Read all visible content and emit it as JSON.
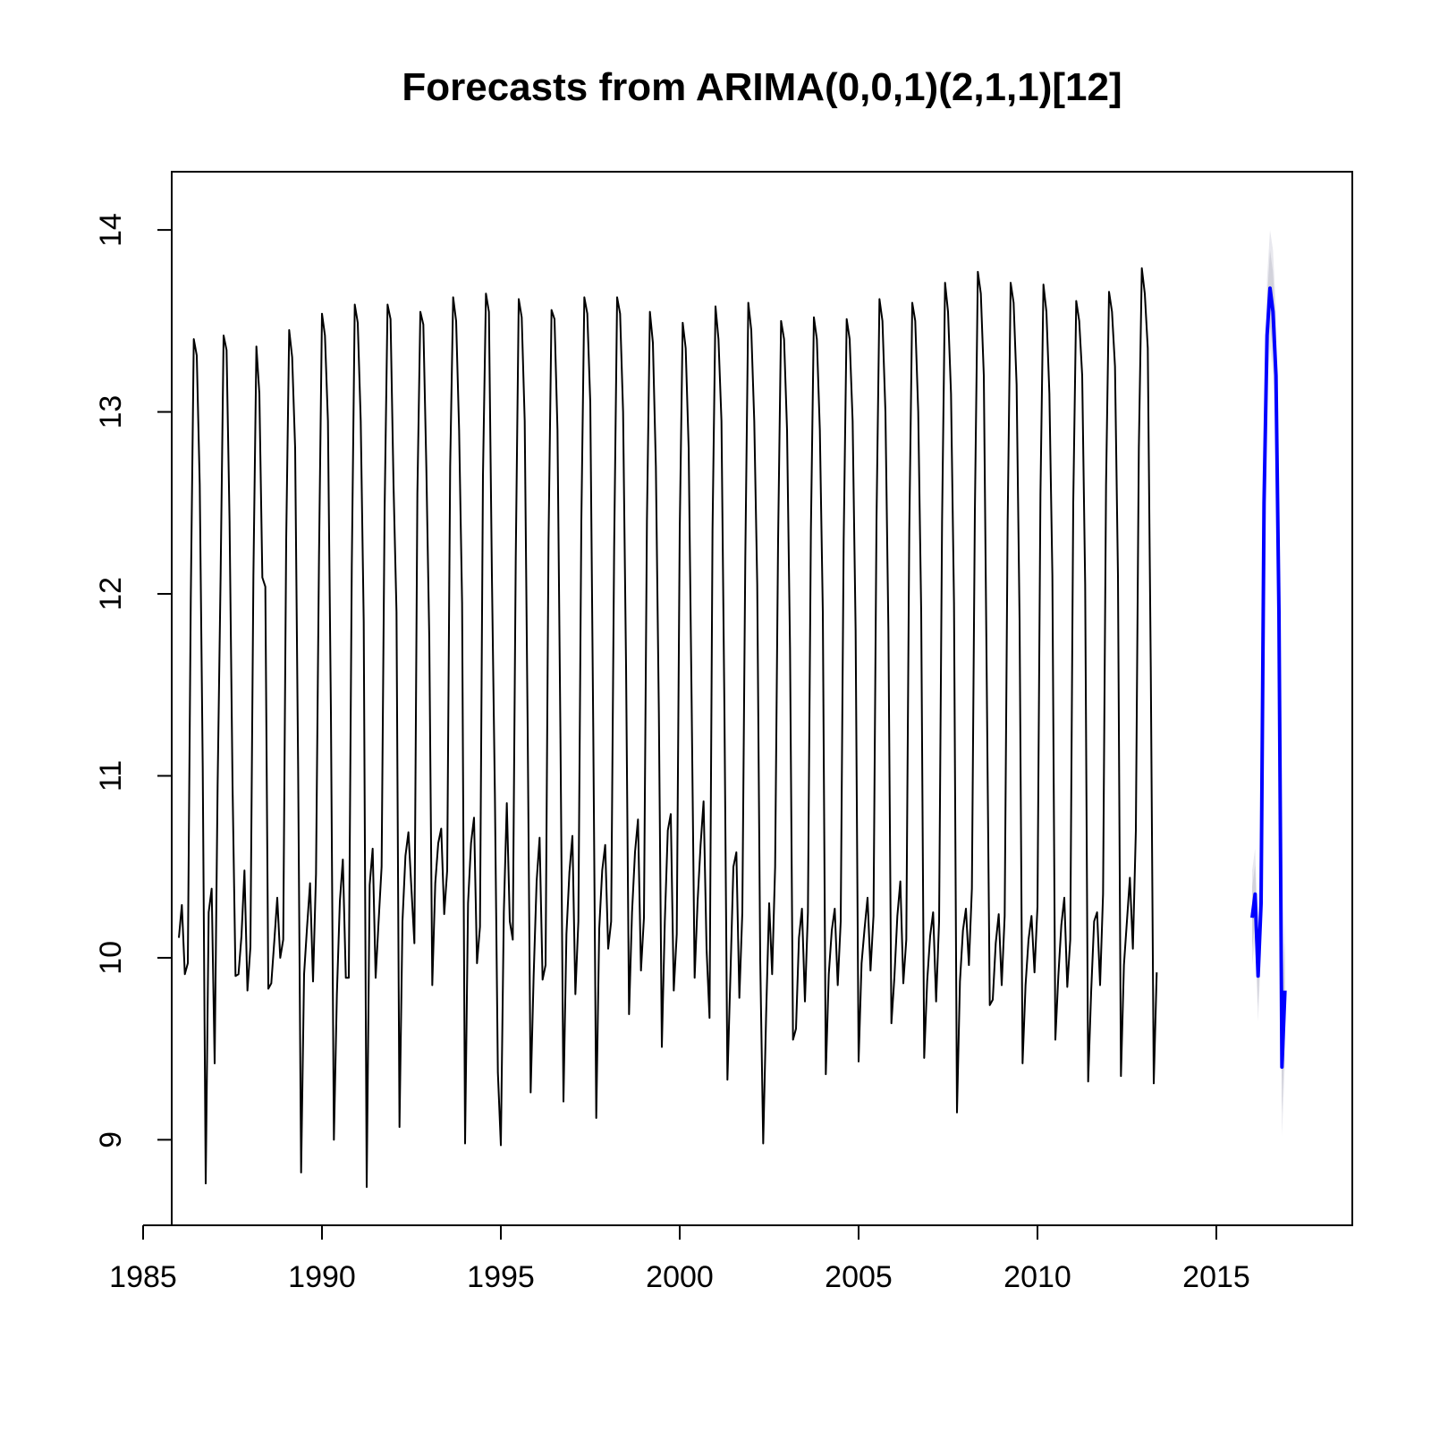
{
  "chart_data": {
    "type": "line",
    "title": "Forecasts from ARIMA(0,0,1)(2,1,1)[12]",
    "xlabel": "",
    "ylabel": "",
    "xlim": [
      1985.8,
      2018.8
    ],
    "ylim": [
      8.53,
      14.32
    ],
    "x_ticks": [
      1985,
      1990,
      1995,
      2000,
      2005,
      2010,
      2015
    ],
    "y_ticks": [
      9,
      10,
      11,
      12,
      13,
      14
    ],
    "grid": false,
    "legend": "none",
    "frequency": 12,
    "history": {
      "start": 1986.0,
      "values": [
        10.11,
        10.29,
        9.91,
        9.97,
        11.98,
        13.4,
        13.31,
        12.6,
        11.05,
        8.76,
        10.25,
        10.38,
        9.42,
        10.95,
        12.1,
        13.42,
        13.34,
        12.4,
        10.95,
        9.9,
        9.91,
        10.12,
        10.48,
        9.82,
        10.06,
        12.1,
        13.36,
        13.1,
        12.09,
        12.04,
        9.83,
        9.86,
        10.09,
        10.33,
        10.0,
        10.1,
        12.3,
        13.45,
        13.3,
        12.8,
        11.05,
        8.82,
        9.91,
        10.17,
        10.41,
        9.87,
        10.46,
        12.2,
        13.54,
        13.42,
        12.95,
        11.35,
        9.0,
        9.8,
        10.31,
        10.54,
        9.89,
        9.89,
        12.15,
        13.59,
        13.49,
        12.95,
        11.85,
        8.74,
        10.4,
        10.6,
        9.89,
        10.2,
        10.5,
        12.45,
        13.59,
        13.51,
        12.6,
        11.9,
        9.07,
        10.2,
        10.56,
        10.69,
        10.38,
        10.08,
        12.55,
        13.55,
        13.48,
        12.7,
        11.75,
        9.85,
        10.41,
        10.63,
        10.71,
        10.24,
        10.48,
        12.7,
        13.63,
        13.5,
        12.9,
        11.95,
        8.98,
        10.3,
        10.63,
        10.77,
        9.97,
        10.17,
        12.65,
        13.65,
        13.55,
        12.1,
        10.9,
        9.37,
        8.97,
        10.25,
        10.85,
        10.2,
        10.1,
        12.2,
        13.62,
        13.52,
        12.95,
        11.25,
        9.26,
        9.9,
        10.42,
        10.66,
        9.88,
        9.96,
        12.3,
        13.56,
        13.51,
        12.9,
        11.2,
        9.21,
        10.13,
        10.47,
        10.67,
        9.8,
        10.2,
        12.4,
        13.63,
        13.54,
        13.05,
        11.25,
        9.12,
        10.16,
        10.48,
        10.62,
        10.05,
        10.2,
        12.25,
        13.63,
        13.54,
        13.0,
        11.6,
        9.69,
        10.25,
        10.58,
        10.76,
        9.93,
        10.22,
        12.4,
        13.55,
        13.38,
        12.7,
        11.35,
        9.51,
        10.2,
        10.7,
        10.79,
        9.82,
        10.13,
        12.35,
        13.49,
        13.35,
        12.8,
        11.4,
        9.89,
        10.31,
        10.62,
        10.86,
        10.05,
        9.67,
        12.35,
        13.58,
        13.4,
        12.95,
        11.35,
        9.33,
        9.9,
        10.5,
        10.58,
        9.78,
        10.25,
        12.2,
        13.6,
        13.45,
        12.95,
        12.05,
        9.99,
        8.98,
        9.7,
        10.3,
        9.91,
        10.5,
        12.3,
        13.5,
        13.4,
        12.9,
        11.7,
        9.55,
        9.61,
        10.11,
        10.27,
        9.76,
        10.25,
        12.35,
        13.52,
        13.4,
        12.9,
        11.9,
        9.36,
        9.91,
        10.15,
        10.27,
        9.85,
        10.2,
        12.3,
        13.51,
        13.4,
        12.95,
        11.8,
        9.43,
        9.97,
        10.16,
        10.33,
        9.93,
        10.23,
        12.4,
        13.62,
        13.5,
        13.0,
        11.8,
        9.64,
        9.89,
        10.23,
        10.42,
        9.86,
        10.1,
        12.35,
        13.6,
        13.5,
        13.0,
        11.9,
        9.45,
        9.87,
        10.12,
        10.25,
        9.76,
        10.2,
        12.4,
        13.71,
        13.55,
        13.1,
        11.95,
        9.15,
        9.87,
        10.15,
        10.27,
        9.96,
        10.38,
        12.45,
        13.77,
        13.65,
        13.2,
        11.5,
        9.74,
        9.77,
        10.08,
        10.24,
        9.85,
        10.23,
        12.4,
        13.71,
        13.6,
        13.15,
        11.85,
        9.42,
        9.85,
        10.1,
        10.23,
        9.92,
        10.28,
        12.55,
        13.7,
        13.55,
        13.1,
        12.1,
        9.55,
        9.9,
        10.18,
        10.33,
        9.84,
        10.1,
        12.5,
        13.61,
        13.5,
        13.2,
        12.05,
        9.32,
        9.81,
        10.2,
        10.25,
        9.85,
        10.35,
        12.6,
        13.66,
        13.55,
        13.25,
        12.1,
        9.35,
        9.96,
        10.2,
        10.44,
        10.05,
        10.7,
        12.8,
        13.79,
        13.65,
        13.35,
        11.6,
        9.31,
        9.92
      ]
    },
    "forecast": {
      "start": 2016.0,
      "values": [
        10.22,
        10.35,
        9.9,
        10.3,
        12.5,
        13.42,
        13.68,
        13.55,
        13.2,
        11.9,
        9.4,
        9.82
      ],
      "lower80": [
        10.05,
        10.19,
        9.73,
        10.12,
        12.32,
        13.22,
        13.47,
        13.33,
        12.96,
        11.65,
        9.15,
        9.56
      ],
      "upper80": [
        10.39,
        10.51,
        10.07,
        10.48,
        12.68,
        13.62,
        13.89,
        13.77,
        13.44,
        12.15,
        9.65,
        10.08
      ],
      "lower95": [
        9.96,
        10.1,
        9.65,
        10.03,
        12.23,
        13.11,
        13.36,
        13.21,
        12.84,
        11.52,
        9.02,
        9.42
      ],
      "upper95": [
        10.48,
        10.6,
        10.15,
        10.57,
        12.77,
        13.73,
        14.0,
        13.89,
        13.56,
        12.28,
        9.78,
        10.22
      ]
    },
    "colors": {
      "history": "#000000",
      "forecast": "#0000ff",
      "band80": "#d2d2db",
      "band95": "#e8e8ee"
    }
  }
}
